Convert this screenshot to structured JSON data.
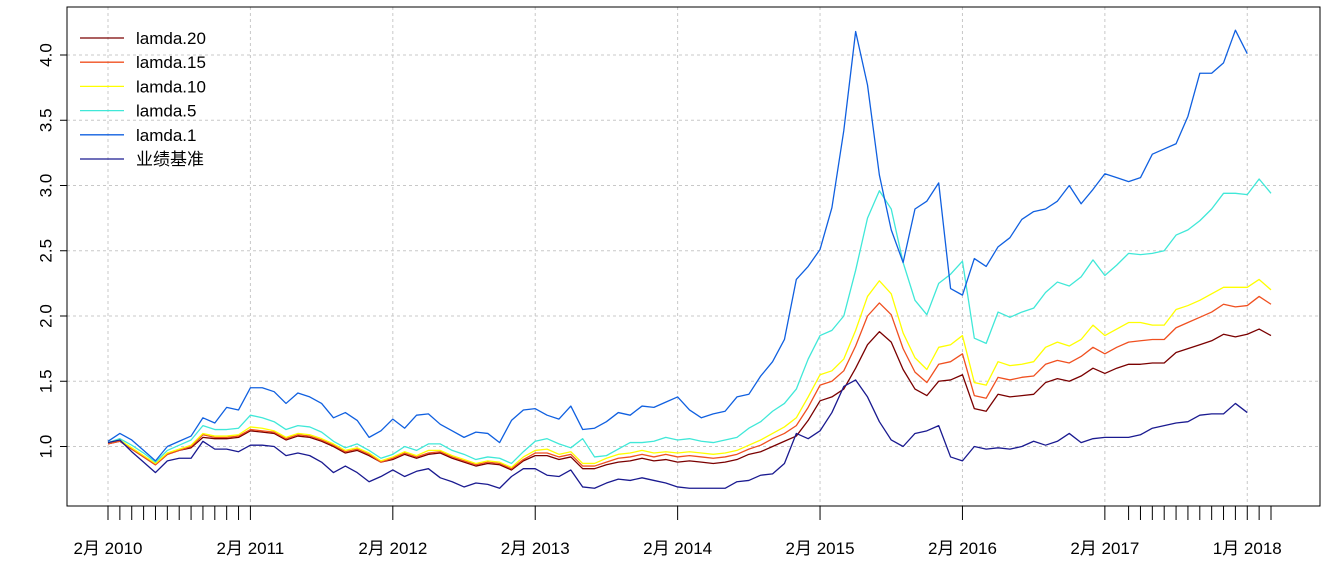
{
  "chart_data": {
    "type": "line",
    "x_tick_labels": [
      "2月 2010",
      "2月 2011",
      "2月 2012",
      "2月 2013",
      "2月 2014",
      "2月 2015",
      "2月 2016",
      "2月 2017",
      "1月 2018"
    ],
    "y_ticks": [
      1.0,
      1.5,
      2.0,
      2.5,
      3.0,
      3.5,
      4.0
    ],
    "y_tick_labels": [
      "1.0",
      "1.5",
      "2.0",
      "2.5",
      "3.0",
      "3.5",
      "4.0"
    ],
    "ylim": [
      0.6,
      4.3
    ],
    "grid": true,
    "legend_position": "top-left",
    "series": [
      {
        "name": "lamda.20",
        "color": "#7a0000",
        "values": [
          1.02,
          1.04,
          0.98,
          0.92,
          0.86,
          0.94,
          0.97,
          0.99,
          1.07,
          1.06,
          1.06,
          1.07,
          1.12,
          1.11,
          1.1,
          1.05,
          1.08,
          1.07,
          1.04,
          1.0,
          0.95,
          0.97,
          0.93,
          0.88,
          0.9,
          0.94,
          0.91,
          0.94,
          0.95,
          0.91,
          0.88,
          0.85,
          0.87,
          0.86,
          0.82,
          0.89,
          0.93,
          0.93,
          0.9,
          0.92,
          0.83,
          0.83,
          0.86,
          0.88,
          0.89,
          0.91,
          0.89,
          0.9,
          0.88,
          0.89,
          0.88,
          0.87,
          0.88,
          0.9,
          0.94,
          0.96,
          1.0,
          1.04,
          1.08,
          1.2,
          1.35,
          1.38,
          1.44,
          1.6,
          1.78,
          1.88,
          1.8,
          1.59,
          1.44,
          1.39,
          1.5,
          1.51,
          1.55,
          1.29,
          1.27,
          1.4,
          1.38,
          1.39,
          1.4,
          1.49,
          1.52,
          1.5,
          1.54,
          1.6,
          1.56,
          1.6,
          1.63,
          1.63,
          1.64,
          1.64,
          1.72,
          1.75,
          1.78,
          1.81,
          1.86,
          1.84,
          1.86,
          1.9,
          1.85
        ]
      },
      {
        "name": "lamda.15",
        "color": "#f05020",
        "values": [
          1.02,
          1.04,
          0.98,
          0.92,
          0.86,
          0.94,
          0.97,
          1.0,
          1.09,
          1.07,
          1.07,
          1.08,
          1.13,
          1.12,
          1.11,
          1.06,
          1.09,
          1.08,
          1.05,
          1.01,
          0.96,
          0.98,
          0.94,
          0.88,
          0.91,
          0.95,
          0.92,
          0.95,
          0.96,
          0.92,
          0.89,
          0.86,
          0.88,
          0.87,
          0.83,
          0.9,
          0.95,
          0.95,
          0.92,
          0.94,
          0.85,
          0.85,
          0.88,
          0.91,
          0.92,
          0.94,
          0.92,
          0.94,
          0.92,
          0.93,
          0.92,
          0.91,
          0.92,
          0.94,
          0.98,
          1.01,
          1.06,
          1.1,
          1.16,
          1.3,
          1.47,
          1.5,
          1.58,
          1.77,
          2.0,
          2.1,
          2.01,
          1.75,
          1.57,
          1.49,
          1.63,
          1.65,
          1.71,
          1.39,
          1.37,
          1.53,
          1.51,
          1.53,
          1.54,
          1.63,
          1.66,
          1.64,
          1.69,
          1.76,
          1.71,
          1.76,
          1.8,
          1.81,
          1.82,
          1.82,
          1.91,
          1.95,
          1.99,
          2.03,
          2.09,
          2.07,
          2.08,
          2.15,
          2.09
        ]
      },
      {
        "name": "lamda.10",
        "color": "#ffff00",
        "values": [
          1.03,
          1.05,
          0.99,
          0.93,
          0.87,
          0.95,
          0.98,
          1.01,
          1.1,
          1.08,
          1.08,
          1.09,
          1.15,
          1.14,
          1.12,
          1.07,
          1.1,
          1.09,
          1.06,
          1.02,
          0.97,
          0.99,
          0.95,
          0.89,
          0.92,
          0.96,
          0.93,
          0.97,
          0.97,
          0.93,
          0.9,
          0.87,
          0.89,
          0.88,
          0.84,
          0.92,
          0.97,
          0.98,
          0.94,
          0.96,
          0.87,
          0.87,
          0.91,
          0.94,
          0.95,
          0.97,
          0.95,
          0.96,
          0.95,
          0.96,
          0.95,
          0.94,
          0.95,
          0.97,
          1.01,
          1.05,
          1.1,
          1.15,
          1.22,
          1.38,
          1.55,
          1.58,
          1.67,
          1.89,
          2.15,
          2.27,
          2.17,
          1.87,
          1.68,
          1.59,
          1.76,
          1.78,
          1.85,
          1.49,
          1.47,
          1.65,
          1.62,
          1.63,
          1.65,
          1.76,
          1.8,
          1.77,
          1.82,
          1.93,
          1.85,
          1.9,
          1.95,
          1.95,
          1.93,
          1.93,
          2.05,
          2.08,
          2.12,
          2.17,
          2.22,
          2.22,
          2.22,
          2.28,
          2.2
        ]
      },
      {
        "name": "lamda.5",
        "color": "#40e8d8",
        "values": [
          1.03,
          1.06,
          1.01,
          0.95,
          0.88,
          0.97,
          1.01,
          1.05,
          1.16,
          1.13,
          1.13,
          1.14,
          1.24,
          1.22,
          1.19,
          1.13,
          1.16,
          1.15,
          1.11,
          1.04,
          0.99,
          1.02,
          0.97,
          0.91,
          0.94,
          1.0,
          0.97,
          1.02,
          1.02,
          0.97,
          0.94,
          0.9,
          0.92,
          0.91,
          0.87,
          0.96,
          1.04,
          1.06,
          1.02,
          0.99,
          1.06,
          0.92,
          0.93,
          0.98,
          1.03,
          1.03,
          1.04,
          1.07,
          1.05,
          1.06,
          1.04,
          1.03,
          1.05,
          1.07,
          1.14,
          1.19,
          1.27,
          1.33,
          1.44,
          1.67,
          1.85,
          1.89,
          2.0,
          2.35,
          2.75,
          2.96,
          2.82,
          2.41,
          2.12,
          2.01,
          2.25,
          2.32,
          2.42,
          1.83,
          1.79,
          2.03,
          1.99,
          2.03,
          2.06,
          2.18,
          2.26,
          2.23,
          2.3,
          2.43,
          2.31,
          2.39,
          2.48,
          2.47,
          2.48,
          2.5,
          2.62,
          2.66,
          2.73,
          2.82,
          2.94,
          2.94,
          2.93,
          3.05,
          2.94
        ]
      },
      {
        "name": "lamda.1",
        "color": "#1060e0",
        "values": [
          1.04,
          1.1,
          1.05,
          0.97,
          0.89,
          1.0,
          1.04,
          1.08,
          1.22,
          1.18,
          1.3,
          1.28,
          1.45,
          1.45,
          1.42,
          1.33,
          1.41,
          1.38,
          1.33,
          1.22,
          1.26,
          1.2,
          1.07,
          1.12,
          1.21,
          1.14,
          1.24,
          1.25,
          1.17,
          1.12,
          1.07,
          1.11,
          1.1,
          1.03,
          1.2,
          1.28,
          1.29,
          1.24,
          1.21,
          1.31,
          1.13,
          1.14,
          1.19,
          1.26,
          1.24,
          1.31,
          1.3,
          1.34,
          1.38,
          1.28,
          1.22,
          1.25,
          1.27,
          1.38,
          1.4,
          1.54,
          1.65,
          1.82,
          2.28,
          2.38,
          2.51,
          2.83,
          3.42,
          4.18,
          3.77,
          3.08,
          2.66,
          2.41,
          2.82,
          2.88,
          3.02,
          2.21,
          2.16,
          2.44,
          2.38,
          2.53,
          2.6,
          2.74,
          2.8,
          2.82,
          2.88,
          3.0,
          2.86,
          2.97,
          3.09,
          3.06,
          3.03,
          3.06,
          3.24,
          3.28,
          3.32,
          3.53,
          3.86,
          3.86,
          3.94,
          4.19,
          4.01
        ]
      },
      {
        "name": "业绩基准",
        "color": "#1a1a90",
        "values": [
          1.03,
          1.05,
          0.96,
          0.88,
          0.8,
          0.89,
          0.91,
          0.91,
          1.04,
          0.98,
          0.98,
          0.96,
          1.01,
          1.01,
          1.0,
          0.93,
          0.95,
          0.93,
          0.88,
          0.8,
          0.85,
          0.8,
          0.73,
          0.77,
          0.82,
          0.77,
          0.81,
          0.83,
          0.76,
          0.73,
          0.69,
          0.72,
          0.71,
          0.68,
          0.77,
          0.83,
          0.83,
          0.78,
          0.77,
          0.82,
          0.69,
          0.68,
          0.72,
          0.75,
          0.74,
          0.76,
          0.74,
          0.72,
          0.69,
          0.68,
          0.68,
          0.68,
          0.68,
          0.73,
          0.74,
          0.78,
          0.79,
          0.87,
          1.1,
          1.06,
          1.12,
          1.26,
          1.46,
          1.51,
          1.38,
          1.19,
          1.05,
          1.0,
          1.1,
          1.12,
          1.16,
          0.92,
          0.89,
          1.0,
          0.98,
          0.99,
          0.98,
          1.0,
          1.04,
          1.01,
          1.04,
          1.1,
          1.03,
          1.06,
          1.07,
          1.07,
          1.07,
          1.09,
          1.14,
          1.16,
          1.18,
          1.19,
          1.24,
          1.25,
          1.25,
          1.33,
          1.26
        ]
      }
    ]
  }
}
